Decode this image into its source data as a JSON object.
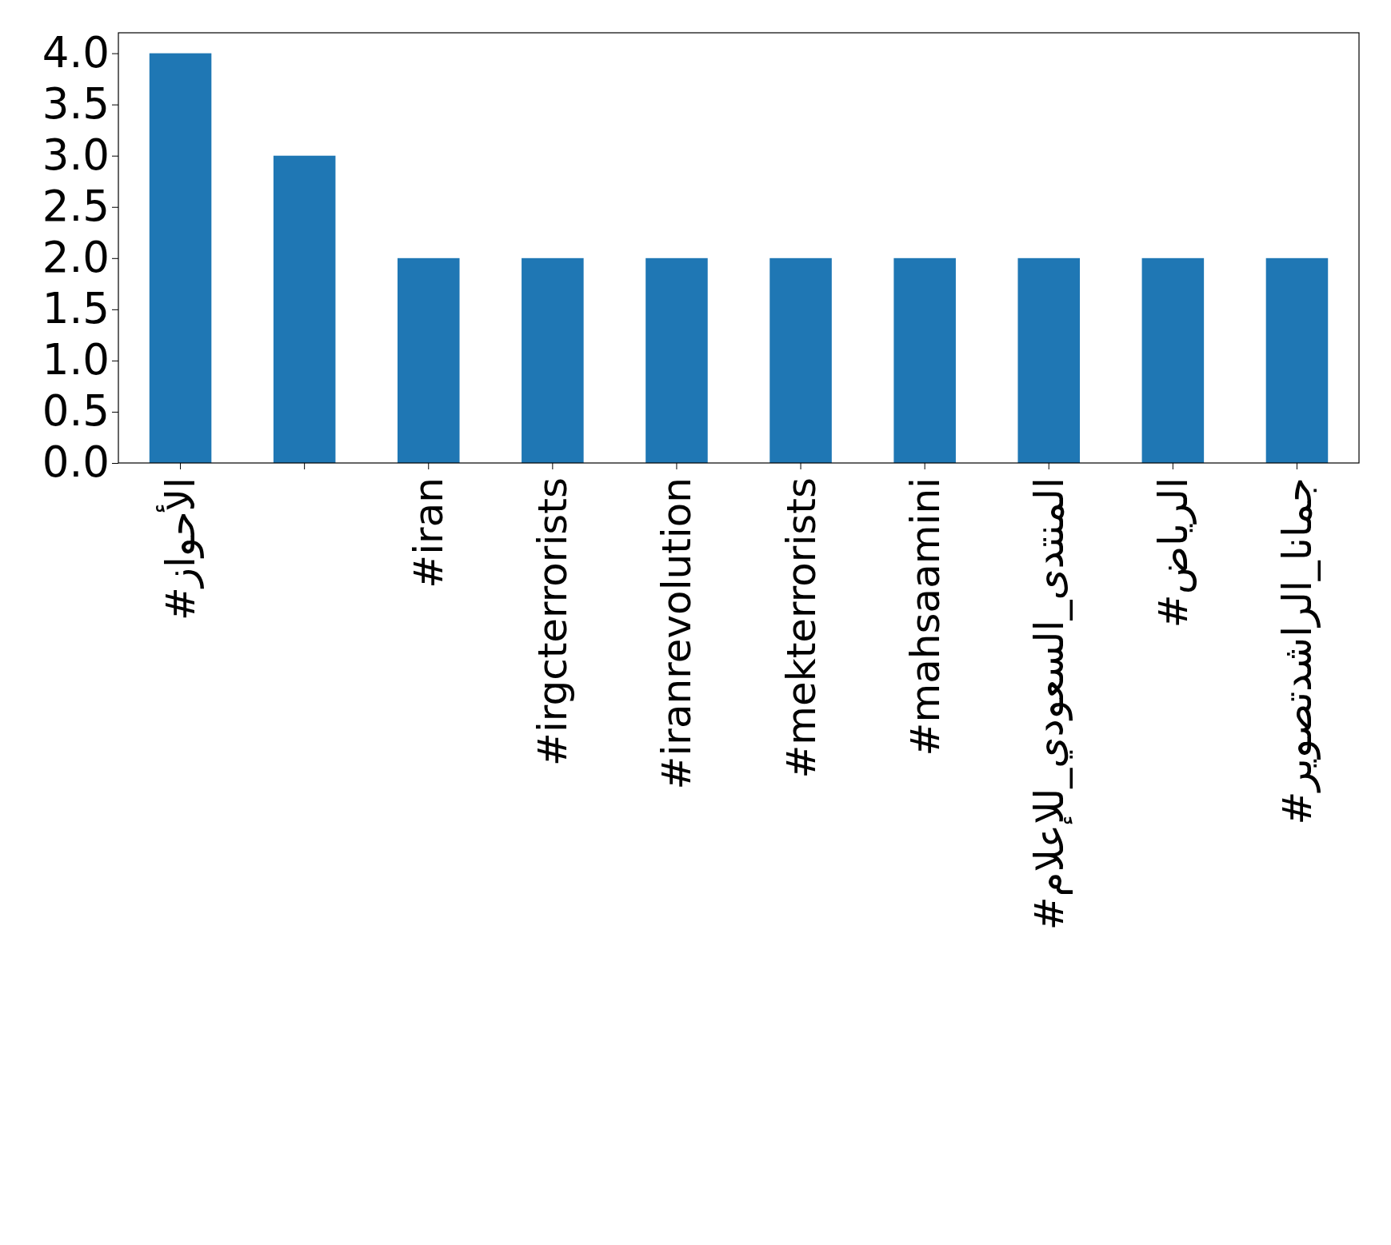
{
  "chart_data": {
    "type": "bar",
    "categories": [
      "#الأحواز",
      null,
      "#iran",
      "#irgcterrorists",
      "#iranrevolution",
      "#mekterrorists",
      "#mahsaamini",
      "#المنتدى_السعودي_للإعلام",
      "#الرياض",
      "#جمانا_الراشدتصوير"
    ],
    "values": [
      4,
      3,
      2,
      2,
      2,
      2,
      2,
      2,
      2,
      2
    ],
    "color": "#1f77b4",
    "ylim": [
      0,
      4.2
    ],
    "yticks": [
      {
        "value": 0,
        "label": "0.0"
      },
      {
        "value": 0.5,
        "label": "0.5"
      },
      {
        "value": 1,
        "label": "1.0"
      },
      {
        "value": 1.5,
        "label": "1.5"
      },
      {
        "value": 2,
        "label": "2.0"
      },
      {
        "value": 2.5,
        "label": "2.5"
      },
      {
        "value": 3,
        "label": "3.0"
      },
      {
        "value": 3.5,
        "label": "3.5"
      },
      {
        "value": 4,
        "label": "4.0"
      }
    ],
    "grid": false
  }
}
